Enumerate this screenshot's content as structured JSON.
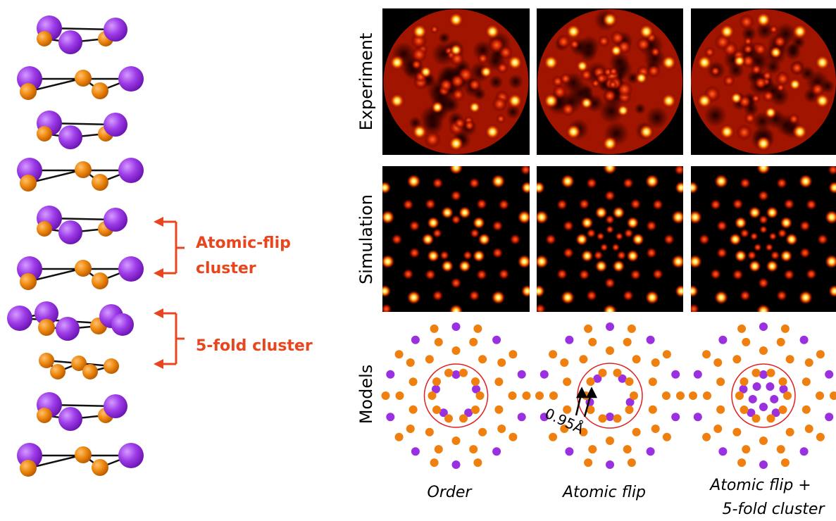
{
  "annotations": {
    "atomic_flip_cluster": [
      "Atomic-flip",
      "cluster"
    ],
    "five_fold_cluster": "5-fold cluster"
  },
  "rows": [
    "Experiment",
    "Simulation",
    "Models"
  ],
  "columns": [
    [
      "Order"
    ],
    [
      "Atomic flip"
    ],
    [
      "Atomic flip +",
      "5-fold cluster"
    ]
  ],
  "distance_label": "0.95Å"
}
